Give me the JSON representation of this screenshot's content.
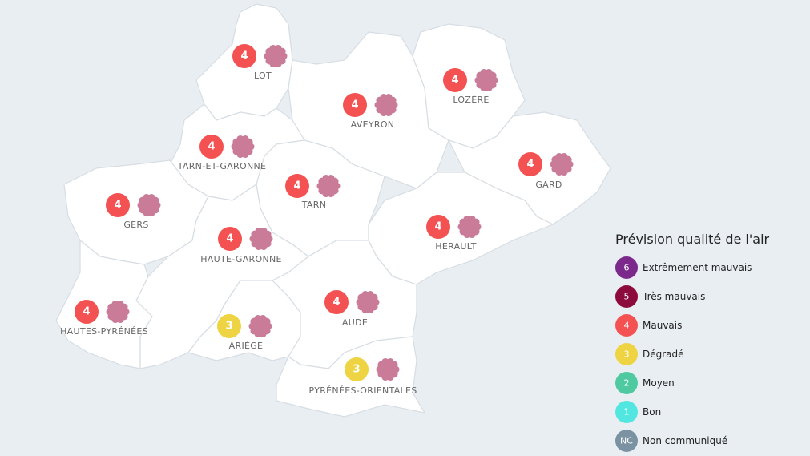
{
  "departments": [
    {
      "name": "LOT",
      "index": 4
    },
    {
      "name": "AVEYRON",
      "index": 4
    },
    {
      "name": "LOZÈRE",
      "index": 4
    },
    {
      "name": "GARD",
      "index": 4
    },
    {
      "name": "TARN-ET-GARONNE",
      "index": 4
    },
    {
      "name": "TARN",
      "index": 4
    },
    {
      "name": "GERS",
      "index": 4
    },
    {
      "name": "HAUTE-GARONNE",
      "index": 4
    },
    {
      "name": "HERAULT",
      "index": 4
    },
    {
      "name": "HAUTES-PYRÉNÉES",
      "index": 4
    },
    {
      "name": "ARIÈGE",
      "index": 3
    },
    {
      "name": "AUDE",
      "index": 4
    },
    {
      "name": "PYRÉNÉES-ORIENTALES",
      "index": 3
    }
  ],
  "legend": {
    "title": "Prévision qualité de l'air",
    "items": [
      {
        "code": 6,
        "label": "Extrêmement mauvais",
        "color": "#7b2a8c"
      },
      {
        "code": 5,
        "label": "Très mauvais",
        "color": "#8c0a3c"
      },
      {
        "code": 4,
        "label": "Mauvais",
        "color": "#f45252"
      },
      {
        "code": 3,
        "label": "Dégradé",
        "color": "#eed443"
      },
      {
        "code": 2,
        "label": "Moyen",
        "color": "#4fc9a0"
      },
      {
        "code": 1,
        "label": "Bon",
        "color": "#52e6e0"
      },
      {
        "code": "NC",
        "label": "Non communiqué",
        "color": "#7a92a2"
      }
    ]
  }
}
